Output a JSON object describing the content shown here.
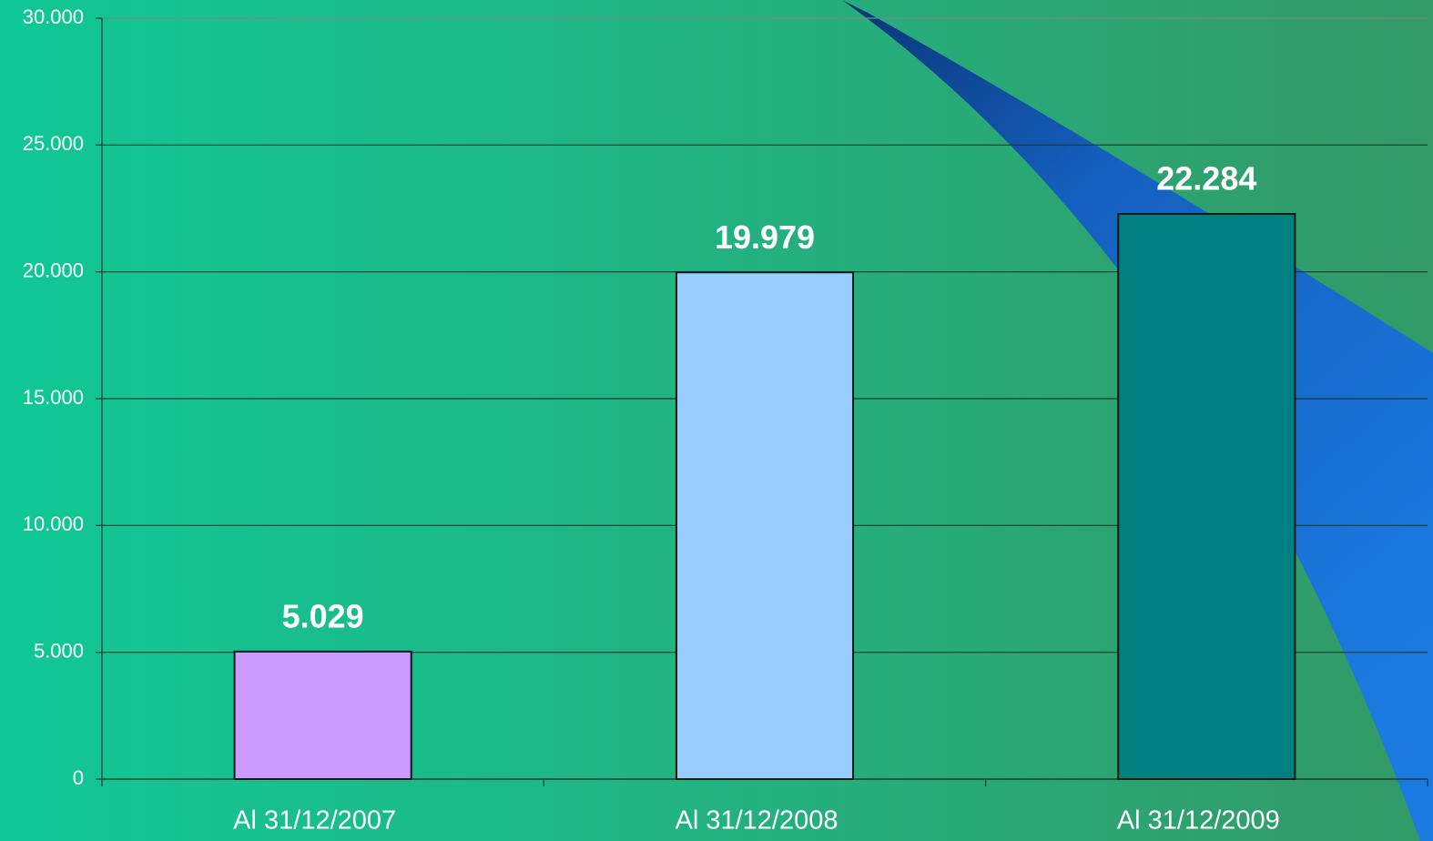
{
  "chart_data": {
    "type": "bar",
    "categories": [
      "Al 31/12/2007",
      "Al 31/12/2008",
      "Al 31/12/2009"
    ],
    "values": [
      5029,
      19979,
      22284
    ],
    "value_labels": [
      "5.029",
      "19.979",
      "22.284"
    ],
    "colors": [
      "#cc99ff",
      "#99ccff",
      "#008080"
    ],
    "ylim": [
      0,
      30000
    ],
    "yticks": [
      0,
      {
        "value": 5000,
        "label": "5.000"
      },
      {
        "value": 10000,
        "label": "10.000"
      },
      {
        "value": 15000,
        "label": "15.000"
      },
      {
        "value": 20000,
        "label": "20.000"
      },
      {
        "value": 25000,
        "label": "25.000"
      },
      {
        "value": 30000,
        "label": "30.000"
      }
    ],
    "grid": true
  }
}
